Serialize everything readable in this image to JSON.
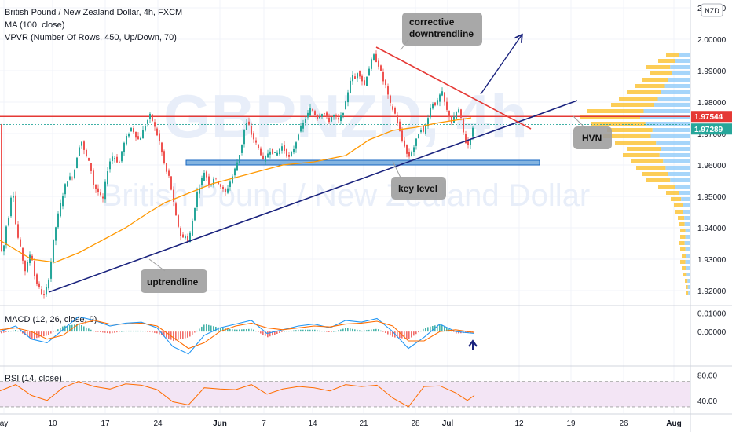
{
  "chart_data": {
    "type": "line",
    "title": "British Pound / New Zealand Dollar, 4h, FXCM",
    "watermark_symbol": "GBPNZD, 4h",
    "watermark_name": "British Pound / New Zealand Dollar",
    "indicators": {
      "ma": "MA (100, close)",
      "vpvr": "VPVR (Number Of Rows, 450, Up/Down, 70)",
      "macd": "MACD (12, 26, close, 9)",
      "rsi": "RSI (14, close)"
    },
    "currency_badge": "NZD",
    "x_ticks": [
      "ay",
      "10",
      "17",
      "24",
      "Jun",
      "7",
      "14",
      "21",
      "28",
      "Jul",
      "12",
      "19",
      "26",
      "Aug"
    ],
    "y_ticks": [
      "2.01000",
      "2.00000",
      "1.99000",
      "1.98000",
      "1.97000",
      "1.96000",
      "1.95000",
      "1.94000",
      "1.93000",
      "1.92000"
    ],
    "ylim": [
      1.9155,
      2.0125
    ],
    "macd_ticks": [
      "0.01000",
      "0.00000"
    ],
    "macd_ylim": [
      -0.018,
      0.0135
    ],
    "rsi_ticks": [
      "80.00",
      "40.00"
    ],
    "rsi_ylim": [
      20,
      93
    ],
    "price_labels": [
      {
        "text": "1.97544",
        "value": 1.97544,
        "color": "#e53935"
      },
      {
        "text": "1.97289",
        "value": 1.97289,
        "color": "#26a69a"
      }
    ],
    "annotations": [
      {
        "text_lines": [
          "corrective",
          "downtrendline"
        ]
      },
      {
        "text_lines": [
          "HVN"
        ]
      },
      {
        "text_lines": [
          "key level"
        ]
      },
      {
        "text_lines": [
          "uptrendline"
        ]
      }
    ],
    "key_level_zone": [
      1.9602,
      1.9615
    ],
    "horizontal_resistance": 1.97544,
    "price_path": [
      [
        0,
        1.935
      ],
      [
        4,
        1.931
      ],
      [
        8,
        1.94
      ],
      [
        12,
        1.944
      ],
      [
        14,
        1.948
      ],
      [
        16,
        1.956
      ],
      [
        20,
        1.942
      ],
      [
        24,
        1.936
      ],
      [
        28,
        1.932
      ],
      [
        32,
        1.926
      ],
      [
        36,
        1.929
      ],
      [
        40,
        1.933
      ],
      [
        44,
        1.925
      ],
      [
        48,
        1.922
      ],
      [
        52,
        1.92
      ],
      [
        56,
        1.918
      ],
      [
        60,
        1.921
      ],
      [
        64,
        1.926
      ],
      [
        68,
        1.935
      ],
      [
        72,
        1.941
      ],
      [
        76,
        1.946
      ],
      [
        80,
        1.95
      ],
      [
        84,
        1.954
      ],
      [
        88,
        1.956
      ],
      [
        92,
        1.956
      ],
      [
        96,
        1.959
      ],
      [
        100,
        1.965
      ],
      [
        104,
        1.968
      ],
      [
        108,
        1.964
      ],
      [
        112,
        1.962
      ],
      [
        116,
        1.959
      ],
      [
        120,
        1.953
      ],
      [
        124,
        1.952
      ],
      [
        128,
        1.95
      ],
      [
        132,
        1.949
      ],
      [
        136,
        1.957
      ],
      [
        140,
        1.961
      ],
      [
        144,
        1.963
      ],
      [
        148,
        1.962
      ],
      [
        152,
        1.96
      ],
      [
        156,
        1.965
      ],
      [
        160,
        1.968
      ],
      [
        164,
        1.97
      ],
      [
        168,
        1.972
      ],
      [
        172,
        1.97
      ],
      [
        176,
        1.968
      ],
      [
        180,
        1.969
      ],
      [
        184,
        1.972
      ],
      [
        188,
        1.974
      ],
      [
        192,
        1.976
      ],
      [
        196,
        1.973
      ],
      [
        200,
        1.97
      ],
      [
        204,
        1.967
      ],
      [
        208,
        1.962
      ],
      [
        212,
        1.958
      ],
      [
        216,
        1.956
      ],
      [
        220,
        1.95
      ],
      [
        224,
        1.944
      ],
      [
        228,
        1.94
      ],
      [
        232,
        1.936
      ],
      [
        236,
        1.938
      ],
      [
        240,
        1.935
      ],
      [
        244,
        1.94
      ],
      [
        248,
        1.946
      ],
      [
        252,
        1.952
      ],
      [
        256,
        1.954
      ],
      [
        260,
        1.958
      ],
      [
        264,
        1.956
      ],
      [
        268,
        1.953
      ],
      [
        272,
        1.956
      ],
      [
        276,
        1.955
      ],
      [
        280,
        1.954
      ],
      [
        284,
        1.952
      ],
      [
        288,
        1.951
      ],
      [
        292,
        1.954
      ],
      [
        296,
        1.956
      ],
      [
        300,
        1.959
      ],
      [
        304,
        1.962
      ],
      [
        308,
        1.966
      ],
      [
        312,
        1.972
      ],
      [
        316,
        1.974
      ],
      [
        320,
        1.97
      ],
      [
        324,
        1.968
      ],
      [
        328,
        1.966
      ],
      [
        332,
        1.964
      ],
      [
        336,
        1.961
      ],
      [
        340,
        1.963
      ],
      [
        344,
        1.965
      ],
      [
        348,
        1.964
      ],
      [
        352,
        1.963
      ],
      [
        356,
        1.965
      ],
      [
        360,
        1.966
      ],
      [
        364,
        1.964
      ],
      [
        368,
        1.962
      ],
      [
        372,
        1.964
      ],
      [
        376,
        1.966
      ],
      [
        380,
        1.97
      ],
      [
        384,
        1.972
      ],
      [
        388,
        1.974
      ],
      [
        392,
        1.976
      ],
      [
        396,
        1.978
      ],
      [
        400,
        1.977
      ],
      [
        404,
        1.975
      ],
      [
        408,
        1.976
      ],
      [
        412,
        1.977
      ],
      [
        416,
        1.975
      ],
      [
        420,
        1.974
      ],
      [
        424,
        1.976
      ],
      [
        428,
        1.975
      ],
      [
        432,
        1.974
      ],
      [
        436,
        1.976
      ],
      [
        440,
        1.979
      ],
      [
        444,
        1.984
      ],
      [
        448,
        1.989
      ],
      [
        452,
        1.987
      ],
      [
        456,
        1.99
      ],
      [
        460,
        1.988
      ],
      [
        464,
        1.985
      ],
      [
        468,
        1.989
      ],
      [
        472,
        1.992
      ],
      [
        476,
        1.995
      ],
      [
        480,
        1.993
      ],
      [
        484,
        1.991
      ],
      [
        488,
        1.987
      ],
      [
        492,
        1.985
      ],
      [
        496,
        1.98
      ],
      [
        500,
        1.978
      ],
      [
        504,
        1.976
      ],
      [
        508,
        1.972
      ],
      [
        512,
        1.968
      ],
      [
        516,
        1.966
      ],
      [
        520,
        1.962
      ],
      [
        524,
        1.964
      ],
      [
        528,
        1.966
      ],
      [
        532,
        1.969
      ],
      [
        536,
        1.972
      ],
      [
        540,
        1.97
      ],
      [
        544,
        1.974
      ],
      [
        548,
        1.978
      ],
      [
        552,
        1.98
      ],
      [
        556,
        1.979
      ],
      [
        560,
        1.982
      ],
      [
        564,
        1.983
      ],
      [
        568,
        1.978
      ],
      [
        572,
        1.976
      ],
      [
        576,
        1.973
      ],
      [
        580,
        1.976
      ],
      [
        584,
        1.978
      ],
      [
        588,
        1.974
      ],
      [
        592,
        1.968
      ],
      [
        596,
        1.966
      ],
      [
        600,
        1.969
      ],
      [
        604,
        1.9729
      ]
    ],
    "ma_path": [
      [
        0,
        1.936
      ],
      [
        40,
        1.93
      ],
      [
        70,
        1.929
      ],
      [
        100,
        1.932
      ],
      [
        130,
        1.936
      ],
      [
        160,
        1.94
      ],
      [
        190,
        1.945
      ],
      [
        210,
        1.948
      ],
      [
        240,
        1.951
      ],
      [
        270,
        1.954
      ],
      [
        300,
        1.956
      ],
      [
        330,
        1.958
      ],
      [
        360,
        1.96
      ],
      [
        400,
        1.961
      ],
      [
        440,
        1.963
      ],
      [
        470,
        1.968
      ],
      [
        500,
        1.971
      ],
      [
        530,
        1.972
      ],
      [
        560,
        1.9735
      ],
      [
        600,
        1.975
      ]
    ],
    "macd_line": [
      [
        0,
        0.0
      ],
      [
        20,
        0.003
      ],
      [
        40,
        -0.004
      ],
      [
        60,
        -0.006
      ],
      [
        80,
        0.001
      ],
      [
        100,
        0.008
      ],
      [
        120,
        0.006
      ],
      [
        140,
        0.003
      ],
      [
        160,
        0.0045
      ],
      [
        180,
        0.005
      ],
      [
        200,
        0.002
      ],
      [
        220,
        -0.008
      ],
      [
        240,
        -0.012
      ],
      [
        260,
        -0.002
      ],
      [
        280,
        0.002
      ],
      [
        300,
        0.004
      ],
      [
        320,
        0.006
      ],
      [
        340,
        -0.001
      ],
      [
        360,
        0.001
      ],
      [
        380,
        0.003
      ],
      [
        400,
        0.004
      ],
      [
        420,
        0.002
      ],
      [
        440,
        0.006
      ],
      [
        460,
        0.005
      ],
      [
        480,
        0.007
      ],
      [
        500,
        0.0
      ],
      [
        520,
        -0.009
      ],
      [
        540,
        -0.003
      ],
      [
        560,
        0.004
      ],
      [
        580,
        0.0
      ],
      [
        604,
        -0.001
      ]
    ],
    "macd_signal": [
      [
        0,
        0.001
      ],
      [
        20,
        0.002
      ],
      [
        40,
        0.0
      ],
      [
        60,
        -0.004
      ],
      [
        80,
        -0.002
      ],
      [
        100,
        0.004
      ],
      [
        120,
        0.006
      ],
      [
        140,
        0.004
      ],
      [
        160,
        0.004
      ],
      [
        180,
        0.0045
      ],
      [
        200,
        0.003
      ],
      [
        220,
        -0.003
      ],
      [
        240,
        -0.009
      ],
      [
        260,
        -0.006
      ],
      [
        280,
        0.0
      ],
      [
        300,
        0.003
      ],
      [
        320,
        0.0045
      ],
      [
        340,
        0.002
      ],
      [
        360,
        0.001
      ],
      [
        380,
        0.002
      ],
      [
        400,
        0.003
      ],
      [
        420,
        0.0025
      ],
      [
        440,
        0.004
      ],
      [
        460,
        0.0045
      ],
      [
        480,
        0.0055
      ],
      [
        500,
        0.003
      ],
      [
        520,
        -0.005
      ],
      [
        540,
        -0.005
      ],
      [
        560,
        0.0
      ],
      [
        580,
        0.001
      ],
      [
        604,
        -0.0005
      ]
    ],
    "rsi_path": [
      [
        0,
        55
      ],
      [
        20,
        65
      ],
      [
        40,
        48
      ],
      [
        60,
        40
      ],
      [
        80,
        60
      ],
      [
        100,
        70
      ],
      [
        120,
        62
      ],
      [
        140,
        58
      ],
      [
        160,
        66
      ],
      [
        180,
        64
      ],
      [
        200,
        57
      ],
      [
        220,
        38
      ],
      [
        240,
        33
      ],
      [
        260,
        60
      ],
      [
        280,
        58
      ],
      [
        300,
        57
      ],
      [
        320,
        65
      ],
      [
        340,
        50
      ],
      [
        360,
        58
      ],
      [
        380,
        62
      ],
      [
        400,
        60
      ],
      [
        420,
        55
      ],
      [
        440,
        65
      ],
      [
        460,
        62
      ],
      [
        480,
        64
      ],
      [
        500,
        44
      ],
      [
        520,
        30
      ],
      [
        540,
        62
      ],
      [
        560,
        63
      ],
      [
        580,
        52
      ],
      [
        595,
        40
      ],
      [
        604,
        48
      ]
    ],
    "vpvr_profile": [
      [
        1.995,
        30
      ],
      [
        1.993,
        40
      ],
      [
        1.991,
        55
      ],
      [
        1.989,
        50
      ],
      [
        1.987,
        60
      ],
      [
        1.985,
        70
      ],
      [
        1.983,
        80
      ],
      [
        1.981,
        90
      ],
      [
        1.979,
        100
      ],
      [
        1.977,
        130
      ],
      [
        1.975,
        140
      ],
      [
        1.973,
        125
      ],
      [
        1.971,
        105
      ],
      [
        1.969,
        110
      ],
      [
        1.967,
        95
      ],
      [
        1.965,
        80
      ],
      [
        1.963,
        85
      ],
      [
        1.961,
        75
      ],
      [
        1.959,
        68
      ],
      [
        1.957,
        60
      ],
      [
        1.955,
        55
      ],
      [
        1.953,
        40
      ],
      [
        1.951,
        30
      ],
      [
        1.949,
        24
      ],
      [
        1.947,
        20
      ],
      [
        1.945,
        18
      ],
      [
        1.943,
        15
      ],
      [
        1.941,
        14
      ],
      [
        1.939,
        12
      ],
      [
        1.937,
        12
      ],
      [
        1.935,
        14
      ],
      [
        1.933,
        12
      ],
      [
        1.931,
        10
      ],
      [
        1.929,
        12
      ],
      [
        1.927,
        10
      ],
      [
        1.925,
        8
      ],
      [
        1.923,
        6
      ],
      [
        1.921,
        5
      ],
      [
        1.919,
        4
      ]
    ],
    "colors": {
      "up": "#26a69a",
      "down": "#ef5350",
      "ma": "#ff9800",
      "resistance": "#e53935",
      "downtrend": "#e53935",
      "uptrend": "#1a237e",
      "arrow": "#1a237e",
      "zone_fill": "#5b9bd5",
      "zone_stroke": "#1565c0",
      "vpvr_up": "#90caf9",
      "vpvr_down": "#fbc02d",
      "macd": "#2196f3",
      "signal": "#ff6d00",
      "rsi": "#ff6d00",
      "rsi_band": "#f3e5f5",
      "annotation": "#9e9e9e"
    }
  }
}
